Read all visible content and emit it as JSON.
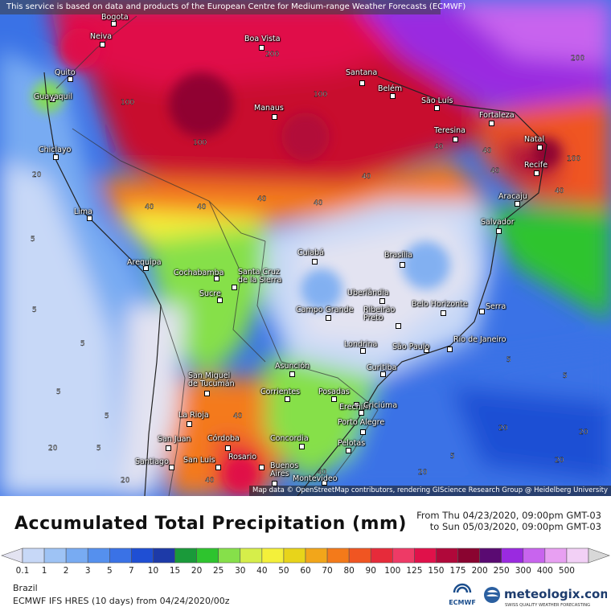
{
  "notice": "This service is based on data and products of the European Centre for Medium-range Weather Forecasts (ECMWF)",
  "attribution": "Map data © OpenStreetMap contributors, rendering GIScience Research Group @ Heidelberg University",
  "cities": {
    "bogota": "Bogota",
    "neiva": "Neiva",
    "quito": "Quito",
    "guayaquil": "Guayaquil",
    "chiclayo": "Chiclayo",
    "lima": "Lima",
    "arequipa": "Arequipa",
    "cochabamba": "Cochabamba",
    "sucre": "Sucre",
    "santa_cruz": "Santa Cruz\nde la Sierra",
    "boa_vista": "Boa Vista",
    "manaus": "Manaus",
    "santana": "Santana",
    "belem": "Belém",
    "sao_luis": "São Luís",
    "fortaleza": "Fortaleza",
    "teresina": "Teresina",
    "natal": "Natal",
    "recife": "Recife",
    "aracaju": "Aracaju",
    "salvador": "Salvador",
    "cuiaba": "Cuiabá",
    "brasilia": "Brasília",
    "uberlandia": "Uberlândia",
    "campo_grande": "Campo Grande",
    "ribeirao_preto": "Ribeirão\nPreto",
    "belo_horizonte": "Belo Horizonte",
    "serra": "Serra",
    "rio": "Rio de Janeiro",
    "sao_paulo": "São Paulo",
    "londrina": "Londrina",
    "curitiba": "Curitiba",
    "asuncion": "Asunción",
    "tucuman": "San Miguel\nde Tucumán",
    "corrientes": "Corrientes",
    "posadas": "Posadas",
    "erechim": "Erechim",
    "criciuma": "Criciúma",
    "porto_alegre": "Porto Alegre",
    "la_rioja": "La Rioja",
    "san_juan": "San Juan",
    "cordoba": "Córdoba",
    "concordia": "Concordia",
    "pelotas": "Pelotas",
    "santiago": "Santiago",
    "san_luis": "San Luis",
    "rosario": "Rosario",
    "buenos_aires": "Buenos\nAires",
    "montevideo": "Montevideo"
  },
  "contour_labels": [
    "5",
    "5",
    "5",
    "5",
    "5",
    "5",
    "20",
    "20",
    "20",
    "40",
    "40",
    "40",
    "40",
    "40",
    "40",
    "40",
    "40",
    "40",
    "100",
    "100",
    "100",
    "100",
    "200",
    "200",
    "5",
    "5",
    "5",
    "20",
    "20",
    "20",
    "20",
    "40",
    "40",
    "40"
  ],
  "legend": {
    "title": "Accumulated Total Precipitation (mm)",
    "from": "From Thu 04/23/2020, 09:00pm GMT-03",
    "to": "to Sun 05/03/2020, 09:00pm GMT-03",
    "ticks": [
      "0.1",
      "1",
      "2",
      "3",
      "5",
      "7",
      "10",
      "15",
      "20",
      "25",
      "30",
      "40",
      "50",
      "60",
      "70",
      "80",
      "90",
      "100",
      "125",
      "150",
      "175",
      "200",
      "250",
      "300",
      "400",
      "500"
    ],
    "colors": [
      "#e3e3f1",
      "#c7d8f7",
      "#9ec3f5",
      "#78abf2",
      "#5590ee",
      "#3a72e6",
      "#1f4fd4",
      "#1d3aa8",
      "#1a9a3a",
      "#2ec42e",
      "#86e04a",
      "#d6ee4a",
      "#f4f03a",
      "#e8d41a",
      "#f2a61a",
      "#f47a1a",
      "#f05522",
      "#e62b3a",
      "#ee3a66",
      "#e0114a",
      "#b0083a",
      "#8a0430",
      "#5a0a72",
      "#9a2ae0",
      "#c864ee",
      "#e8a0f2",
      "#f2d0f6",
      "#d8d8d8"
    ],
    "region": "Brazil",
    "model": "ECMWF IFS HRES (10 days) from 04/24/2020/00z",
    "ecmwf_logo": "ECMWF",
    "brand": "meteologix.com",
    "brand_sub": "SWISS QUALITY WEATHER FORECASTING"
  }
}
